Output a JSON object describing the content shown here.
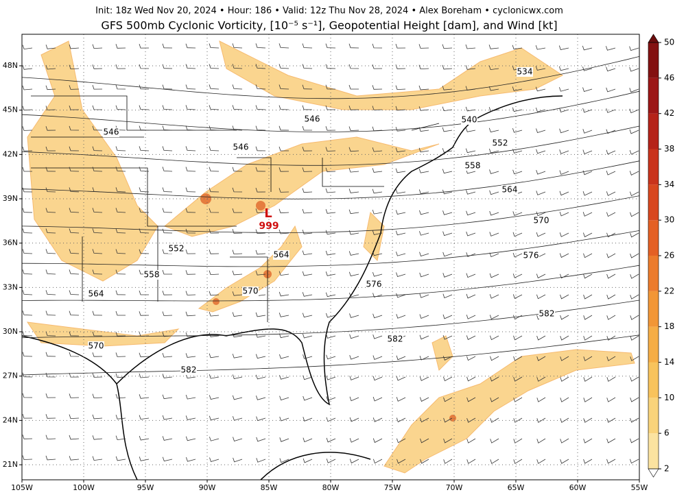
{
  "header": {
    "info": "Init: 18z Wed Nov 20, 2024 • Hour: 186 • Valid: 12z Thu Nov 28, 2024 • Alex Boreham • cyclonicwx.com",
    "title": "GFS 500mb Cyclonic Vorticity, [10⁻⁵ s⁻¹], Geopotential Height [dam], and Wind [kt]"
  },
  "map": {
    "lon_labels": [
      "105W",
      "100W",
      "95W",
      "90W",
      "85W",
      "80W",
      "75W",
      "70W",
      "65W",
      "60W",
      "55W"
    ],
    "lat_labels": [
      "48N",
      "45N",
      "42N",
      "39N",
      "36N",
      "33N",
      "30N",
      "27N",
      "24N",
      "21N"
    ],
    "contour_labels": [
      "546",
      "546",
      "546",
      "534",
      "540",
      "552",
      "558",
      "564",
      "570",
      "576",
      "582",
      "582",
      "552",
      "558",
      "564",
      "564",
      "570",
      "576",
      "570",
      "582"
    ],
    "low": {
      "symbol": "L",
      "value": "999"
    }
  },
  "colorbar": {
    "ticks": [
      2,
      6,
      10,
      14,
      18,
      22,
      26,
      30,
      34,
      38,
      42,
      46,
      50
    ],
    "range": [
      2,
      50
    ]
  }
}
